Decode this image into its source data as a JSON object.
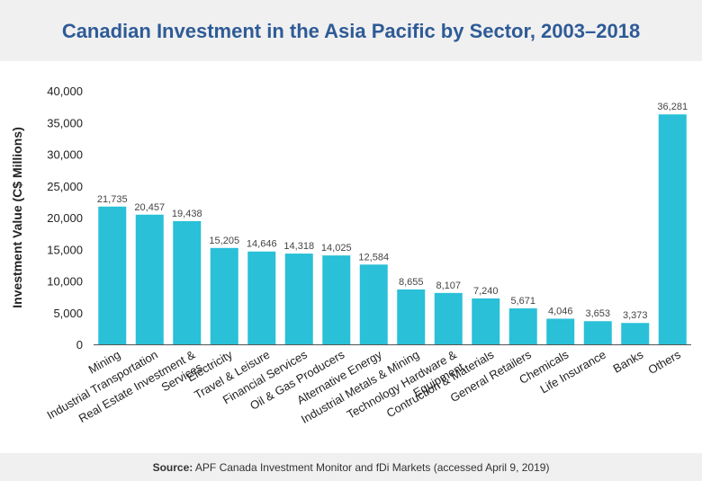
{
  "title": "Canadian Investment in the Asia Pacific by Sector, 2003–2018",
  "source": {
    "label": "Source:",
    "text": "APF Canada Investment Monitor and fDi Markets (accessed April 9, 2019)"
  },
  "colors": {
    "bar": "#29c0d8",
    "title": "#2e5b96",
    "header_bg": "#f0f0f1"
  },
  "chart_data": {
    "type": "bar",
    "title": "Canadian Investment in the Asia Pacific by Sector, 2003–2018",
    "xlabel": "",
    "ylabel": "Investment Value (C$ Millions)",
    "ylim": [
      0,
      40000
    ],
    "yticks": [
      0,
      5000,
      10000,
      15000,
      20000,
      25000,
      30000,
      35000,
      40000
    ],
    "ytick_labels": [
      "0",
      "5,000",
      "10,000",
      "15,000",
      "20,000",
      "25,000",
      "30,000",
      "35,000",
      "40,000"
    ],
    "grid": false,
    "categories": [
      "Mining",
      "Industrial Transportation",
      "Real Estate Investment & Services",
      "Electricity",
      "Travel & Leisure",
      "Financial Services",
      "Oil & Gas Producers",
      "Alternative Energy",
      "Industrial Metals & Mining",
      "Technology Hardware & Equipment",
      "Contruction & Materials",
      "General Retailers",
      "Chemicals",
      "Life Insurance",
      "Banks",
      "Others"
    ],
    "category_label_lines": [
      [
        "Mining"
      ],
      [
        "Industrial Transportation"
      ],
      [
        "Real Estate Investment &",
        "Services"
      ],
      [
        "Electricity"
      ],
      [
        "Travel & Leisure"
      ],
      [
        "Financial Services"
      ],
      [
        "Oil & Gas Producers"
      ],
      [
        "Alternative Energy"
      ],
      [
        "Industrial Metals & Mining"
      ],
      [
        "Technology Hardware &",
        "Equipment"
      ],
      [
        "Contruction & Materials"
      ],
      [
        "General Retailers"
      ],
      [
        "Chemicals"
      ],
      [
        "Life Insurance"
      ],
      [
        "Banks"
      ],
      [
        "Others"
      ]
    ],
    "values": [
      21735,
      20457,
      19438,
      15205,
      14646,
      14318,
      14025,
      12584,
      8655,
      8107,
      7240,
      5671,
      4046,
      3653,
      3373,
      36281
    ],
    "value_labels": [
      "21,735",
      "20,457",
      "19,438",
      "15,205",
      "14,646",
      "14,318",
      "14,025",
      "12,584",
      "8,655",
      "8,107",
      "7,240",
      "5,671",
      "4,046",
      "3,653",
      "3,373",
      "36,281"
    ]
  }
}
